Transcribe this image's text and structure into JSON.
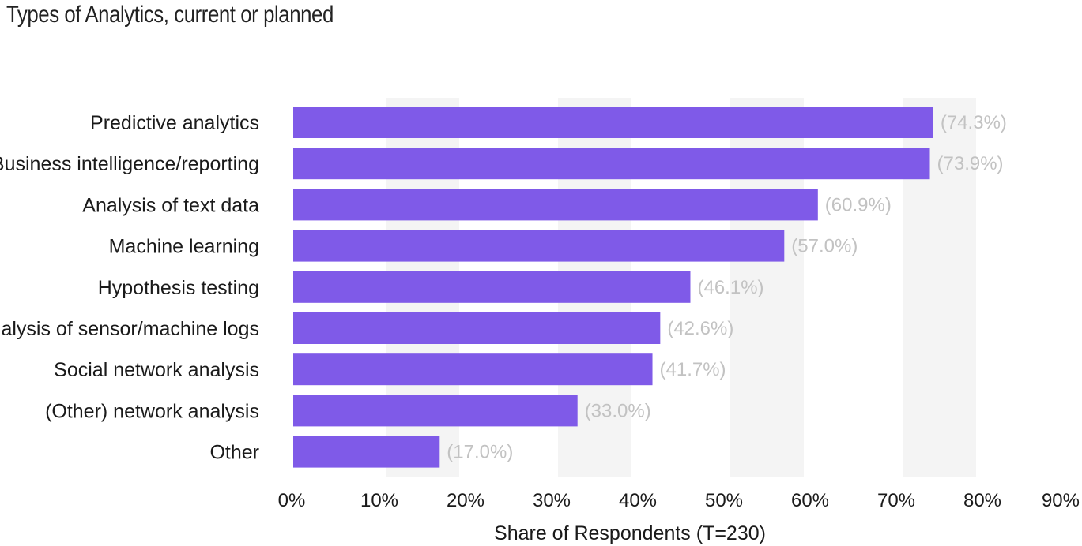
{
  "chart_data": {
    "type": "bar",
    "orientation": "horizontal",
    "title": "Types of Analytics, current or planned",
    "xlabel": "Share of Respondents (T=230)",
    "ylabel": "",
    "xlim": [
      0,
      90
    ],
    "x_ticks": [
      "0%",
      "10%",
      "20%",
      "30%",
      "40%",
      "50%",
      "60%",
      "70%",
      "80%",
      "90%"
    ],
    "grid": "alternating vertical bands",
    "categories": [
      "Predictive analytics",
      "Business intelligence/reporting",
      "Analysis of text data",
      "Machine learning",
      "Hypothesis testing",
      "Analysis of sensor/machine logs",
      "Social network analysis",
      "(Other) network analysis",
      "Other"
    ],
    "values": [
      74.3,
      73.9,
      60.9,
      57.0,
      46.1,
      42.6,
      41.7,
      33.0,
      17.0
    ],
    "value_labels": [
      "(74.3%)",
      "(73.9%)",
      "(60.9%)",
      "(57.0%)",
      "(46.1%)",
      "(42.6%)",
      "(41.7%)",
      "(33.0%)",
      "(17.0%)"
    ],
    "colors": {
      "bar": "#7f5ae8",
      "band": "#f4f4f4",
      "value_label": "#c2c2c2",
      "text": "#1a1a1a"
    }
  }
}
